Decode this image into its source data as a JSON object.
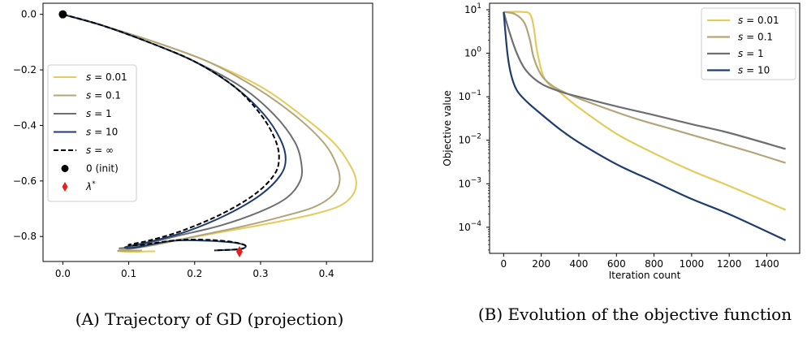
{
  "colors": {
    "s001": "#e3cb5c",
    "s01": "#b3a57a",
    "s1": "#6e6e72",
    "s10": "#1f3c6e",
    "sinf": "#000000",
    "init": "#000000",
    "lambda": "#e8201c"
  },
  "captions": {
    "a": "(A) Trajectory of GD (projection)",
    "b": "(B) Evolution of the objective function"
  },
  "chart_data": [
    {
      "type": "line",
      "title": "",
      "xlabel": "",
      "ylabel": "",
      "xlim": [
        -0.03,
        0.47
      ],
      "ylim": [
        -0.89,
        0.04
      ],
      "xticks": [
        0.0,
        0.1,
        0.2,
        0.3,
        0.4
      ],
      "xtick_labels": [
        "0.0",
        "0.1",
        "0.2",
        "0.3",
        "0.4"
      ],
      "yticks": [
        0.0,
        -0.2,
        -0.4,
        -0.6,
        -0.8
      ],
      "ytick_labels": [
        "0.0",
        "−0.2",
        "−0.4",
        "−0.6",
        "−0.8"
      ],
      "legend_position": "center-left",
      "series": [
        {
          "name": "s = 0.01",
          "legend_math": "s",
          "legend_val": "= 0.01",
          "color_key": "s001",
          "dash": false,
          "x": [
            0,
            0.06,
            0.14,
            0.22,
            0.3,
            0.36,
            0.41,
            0.435,
            0.445,
            0.44,
            0.42,
            0.38,
            0.32,
            0.25,
            0.18,
            0.12,
            0.085,
            0.1,
            0.14
          ],
          "y": [
            0,
            -0.04,
            -0.1,
            -0.17,
            -0.26,
            -0.36,
            -0.46,
            -0.54,
            -0.6,
            -0.65,
            -0.69,
            -0.72,
            -0.75,
            -0.78,
            -0.81,
            -0.835,
            -0.85,
            -0.855,
            -0.853
          ]
        },
        {
          "name": "s = 0.1",
          "legend_math": "s",
          "legend_val": "= 0.1",
          "color_key": "s01",
          "dash": false,
          "x": [
            0,
            0.06,
            0.14,
            0.22,
            0.29,
            0.35,
            0.395,
            0.415,
            0.42,
            0.41,
            0.38,
            0.33,
            0.27,
            0.2,
            0.14,
            0.095,
            0.085,
            0.12
          ],
          "y": [
            0,
            -0.04,
            -0.1,
            -0.17,
            -0.26,
            -0.36,
            -0.46,
            -0.54,
            -0.6,
            -0.65,
            -0.695,
            -0.73,
            -0.765,
            -0.8,
            -0.83,
            -0.848,
            -0.852,
            -0.85
          ]
        },
        {
          "name": "s = 1",
          "legend_math": "s",
          "legend_val": "= 1",
          "color_key": "s1",
          "dash": false,
          "x": [
            0,
            0.06,
            0.13,
            0.2,
            0.27,
            0.32,
            0.352,
            0.362,
            0.36,
            0.34,
            0.3,
            0.24,
            0.17,
            0.11,
            0.085
          ],
          "y": [
            0,
            -0.04,
            -0.1,
            -0.17,
            -0.26,
            -0.36,
            -0.46,
            -0.54,
            -0.6,
            -0.66,
            -0.71,
            -0.76,
            -0.8,
            -0.835,
            -0.843
          ]
        },
        {
          "name": "s = 10",
          "legend_math": "s",
          "legend_val": "= 10",
          "color_key": "s10",
          "dash": false,
          "x": [
            0,
            0.06,
            0.13,
            0.2,
            0.26,
            0.305,
            0.33,
            0.338,
            0.33,
            0.3,
            0.25,
            0.19,
            0.13,
            0.095,
            0.11,
            0.17,
            0.24,
            0.275,
            0.27,
            0.23
          ],
          "y": [
            0,
            -0.04,
            -0.1,
            -0.17,
            -0.26,
            -0.36,
            -0.45,
            -0.52,
            -0.58,
            -0.65,
            -0.72,
            -0.78,
            -0.82,
            -0.838,
            -0.84,
            -0.815,
            -0.818,
            -0.83,
            -0.845,
            -0.85
          ]
        },
        {
          "name": "s = ∞",
          "legend_math": "s",
          "legend_val": "= ∞",
          "color_key": "sinf",
          "dash": true,
          "x": [
            0,
            0.06,
            0.13,
            0.2,
            0.26,
            0.3,
            0.322,
            0.328,
            0.32,
            0.29,
            0.24,
            0.18,
            0.13,
            0.1,
            0.12,
            0.18,
            0.24,
            0.275,
            0.27,
            0.23
          ],
          "y": [
            0,
            -0.04,
            -0.1,
            -0.17,
            -0.26,
            -0.36,
            -0.45,
            -0.52,
            -0.58,
            -0.65,
            -0.72,
            -0.78,
            -0.815,
            -0.83,
            -0.83,
            -0.812,
            -0.815,
            -0.83,
            -0.845,
            -0.85
          ]
        }
      ],
      "points": [
        {
          "name": "0 (init)",
          "legend_label": "0 (init)",
          "marker": "circle",
          "color_key": "init",
          "x": 0.0,
          "y": 0.0
        },
        {
          "name": "λ*",
          "legend_math": "λ",
          "legend_sup": "*",
          "marker": "diamond",
          "color_key": "lambda",
          "x": 0.268,
          "y": -0.855
        }
      ]
    },
    {
      "type": "line",
      "title": "",
      "xlabel": "Iteration count",
      "ylabel": "Objective value",
      "yscale": "log",
      "xlim": [
        -75,
        1575
      ],
      "ylim_log10": [
        -4.6,
        1.15
      ],
      "xticks": [
        0,
        200,
        400,
        600,
        800,
        1000,
        1200,
        1400
      ],
      "ytick_exponents": [
        1,
        0,
        -1,
        -2,
        -3,
        -4
      ],
      "legend_position": "top-right",
      "series": [
        {
          "name": "s = 0.01",
          "legend_math": "s",
          "legend_val": "= 0.01",
          "color_key": "s001",
          "x": [
            0,
            100,
            140,
            160,
            180,
            220,
            300,
            400,
            600,
            800,
            1000,
            1200,
            1500
          ],
          "log10y": [
            0.95,
            0.95,
            0.9,
            0.6,
            0.0,
            -0.6,
            -0.9,
            -1.25,
            -1.85,
            -2.3,
            -2.7,
            -3.05,
            -3.6
          ]
        },
        {
          "name": "s = 0.1",
          "legend_math": "s",
          "legend_val": "= 0.1",
          "color_key": "s01",
          "x": [
            0,
            60,
            110,
            140,
            160,
            200,
            260,
            350,
            500,
            700,
            900,
            1100,
            1300,
            1500
          ],
          "log10y": [
            0.95,
            0.9,
            0.7,
            0.3,
            -0.1,
            -0.5,
            -0.75,
            -0.95,
            -1.2,
            -1.5,
            -1.75,
            -2.0,
            -2.25,
            -2.52
          ]
        },
        {
          "name": "s = 1",
          "legend_math": "s",
          "legend_val": "= 1",
          "color_key": "s1",
          "x": [
            0,
            30,
            70,
            120,
            200,
            300,
            400,
            600,
            800,
            1000,
            1200,
            1500
          ],
          "log10y": [
            0.95,
            0.5,
            0.0,
            -0.4,
            -0.7,
            -0.88,
            -1.0,
            -1.22,
            -1.42,
            -1.63,
            -1.83,
            -2.2
          ]
        },
        {
          "name": "s = 10",
          "legend_math": "s",
          "legend_val": "= 10",
          "color_key": "s10",
          "x": [
            0,
            20,
            40,
            70,
            120,
            200,
            300,
            400,
            600,
            800,
            1000,
            1200,
            1500
          ],
          "log10y": [
            0.95,
            0.0,
            -0.5,
            -0.85,
            -1.1,
            -1.4,
            -1.75,
            -2.05,
            -2.55,
            -2.95,
            -3.35,
            -3.7,
            -4.3
          ]
        }
      ]
    }
  ]
}
